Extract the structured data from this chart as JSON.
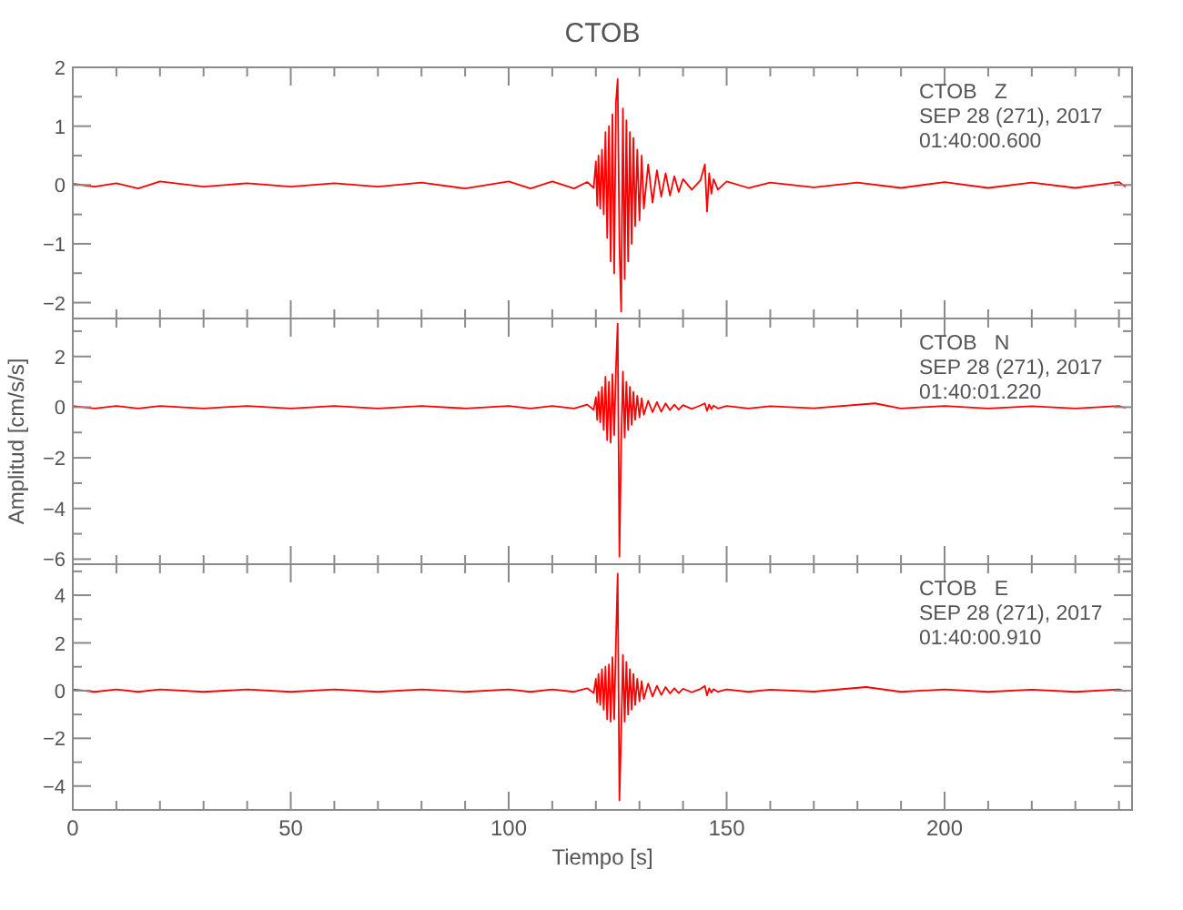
{
  "chart_data": [
    {
      "type": "line",
      "title": "CTOB",
      "tick_labels": "y",
      "grid": false,
      "annotations": [
        "CTOB   Z",
        "SEP 28 (271), 2017",
        "01:40:00.600"
      ],
      "xlim": [
        0,
        243
      ],
      "xticks": [
        0,
        {
          "value": 10,
          "label": null
        },
        {
          "value": 20,
          "label": null
        },
        {
          "value": 30,
          "label": null
        },
        {
          "value": 40,
          "label": null
        },
        50,
        {
          "value": 60,
          "label": null
        },
        {
          "value": 70,
          "label": null
        },
        {
          "value": 80,
          "label": null
        },
        {
          "value": 90,
          "label": null
        },
        100,
        {
          "value": 110,
          "label": null
        },
        {
          "value": 120,
          "label": null
        },
        {
          "value": 130,
          "label": null
        },
        {
          "value": 140,
          "label": null
        },
        150,
        {
          "value": 160,
          "label": null
        },
        {
          "value": 170,
          "label": null
        },
        {
          "value": 180,
          "label": null
        },
        {
          "value": 190,
          "label": null
        },
        200,
        {
          "value": 210,
          "label": null
        },
        {
          "value": 220,
          "label": null
        },
        {
          "value": 230,
          "label": null
        },
        {
          "value": 240,
          "label": null
        }
      ],
      "ylim": [
        -2.27,
        2
      ],
      "yticks": [
        -2,
        {
          "value": -1.5,
          "label": null
        },
        -1,
        {
          "value": -0.5,
          "label": null
        },
        0,
        {
          "value": 0.5,
          "label": null
        },
        1,
        {
          "value": 1.5,
          "label": null
        },
        2
      ],
      "x": [
        0,
        5,
        10,
        15,
        20,
        30,
        40,
        50,
        60,
        70,
        80,
        90,
        100,
        105,
        110,
        115,
        118,
        119.5,
        120,
        120.3,
        120.6,
        121,
        121.4,
        121.8,
        122.2,
        122.6,
        123,
        123.4,
        123.8,
        124.2,
        124.6,
        125,
        125.4,
        125.8,
        126.2,
        126.6,
        127,
        127.4,
        127.8,
        128.2,
        128.6,
        129,
        129.5,
        130,
        130.5,
        131,
        132,
        133,
        134,
        135,
        136,
        137,
        138,
        139,
        140,
        142,
        144,
        145,
        145.5,
        146,
        146.5,
        147,
        148,
        150,
        155,
        160,
        170,
        180,
        190,
        200,
        210,
        220,
        230,
        240,
        241.5
      ],
      "series": [
        {
          "color": "#ff0000",
          "values": [
            0.02,
            -0.03,
            0.03,
            -0.06,
            0.06,
            -0.03,
            0.03,
            -0.03,
            0.03,
            -0.03,
            0.04,
            -0.06,
            0.06,
            -0.06,
            0.06,
            -0.06,
            0.05,
            -0.05,
            0.4,
            -0.35,
            0.5,
            -0.4,
            0.6,
            -0.5,
            0.9,
            -0.9,
            1.0,
            -1.3,
            1.2,
            -1.5,
            1.4,
            1.8,
            -1.0,
            -2.15,
            1.3,
            -1.6,
            1.1,
            -1.3,
            0.9,
            -1.0,
            0.8,
            -0.7,
            0.6,
            -0.6,
            0.5,
            -0.4,
            0.35,
            -0.3,
            0.25,
            -0.2,
            0.2,
            -0.18,
            0.15,
            -0.12,
            0.1,
            -0.08,
            0.08,
            0.35,
            -0.45,
            0.2,
            -0.15,
            0.1,
            -0.08,
            0.06,
            -0.05,
            0.04,
            -0.04,
            0.04,
            -0.05,
            0.05,
            -0.05,
            0.04,
            -0.05,
            0.05,
            -0.03
          ]
        }
      ]
    },
    {
      "type": "line",
      "ylabel": "Amplitud [cm/s/s]",
      "tick_labels": "y",
      "grid": false,
      "annotations": [
        "CTOB   N",
        "SEP 28 (271), 2017",
        "01:40:01.220"
      ],
      "xlim": [
        0,
        243
      ],
      "xticks": [
        0,
        {
          "value": 10,
          "label": null
        },
        {
          "value": 20,
          "label": null
        },
        {
          "value": 30,
          "label": null
        },
        {
          "value": 40,
          "label": null
        },
        50,
        {
          "value": 60,
          "label": null
        },
        {
          "value": 70,
          "label": null
        },
        {
          "value": 80,
          "label": null
        },
        {
          "value": 90,
          "label": null
        },
        100,
        {
          "value": 110,
          "label": null
        },
        {
          "value": 120,
          "label": null
        },
        {
          "value": 130,
          "label": null
        },
        {
          "value": 140,
          "label": null
        },
        150,
        {
          "value": 160,
          "label": null
        },
        {
          "value": 170,
          "label": null
        },
        {
          "value": 180,
          "label": null
        },
        {
          "value": 190,
          "label": null
        },
        200,
        {
          "value": 210,
          "label": null
        },
        {
          "value": 220,
          "label": null
        },
        {
          "value": 230,
          "label": null
        },
        {
          "value": 240,
          "label": null
        }
      ],
      "ylim": [
        -6.2,
        3.5
      ],
      "yticks": [
        -6,
        {
          "value": -5,
          "label": null
        },
        -4,
        {
          "value": -3,
          "label": null
        },
        -2,
        {
          "value": -1,
          "label": null
        },
        0,
        {
          "value": 1,
          "label": null
        },
        2,
        {
          "value": 3,
          "label": null
        }
      ],
      "x": [
        0,
        5,
        10,
        15,
        20,
        30,
        40,
        50,
        60,
        70,
        80,
        90,
        100,
        105,
        110,
        115,
        118,
        119.5,
        120,
        120.3,
        120.6,
        121,
        121.4,
        121.8,
        122.2,
        122.6,
        123,
        123.4,
        123.8,
        124.2,
        124.6,
        125,
        125.4,
        125.8,
        126.2,
        126.6,
        127,
        127.4,
        127.8,
        128.2,
        128.6,
        129,
        129.5,
        130,
        130.5,
        131,
        132,
        133,
        134,
        135,
        136,
        137,
        138,
        139,
        140,
        142,
        144,
        145,
        145.5,
        146,
        146.5,
        147,
        148,
        150,
        155,
        160,
        170,
        184,
        190,
        200,
        210,
        220,
        230,
        240,
        241.5
      ],
      "series": [
        {
          "color": "#ff0000",
          "values": [
            0.05,
            -0.05,
            0.05,
            -0.05,
            0.05,
            -0.05,
            0.05,
            -0.05,
            0.05,
            -0.05,
            0.05,
            -0.05,
            0.05,
            -0.05,
            0.05,
            -0.05,
            0.1,
            -0.1,
            0.4,
            -0.5,
            0.6,
            -0.6,
            0.8,
            -0.9,
            1.2,
            -1.3,
            1.0,
            -1.4,
            1.3,
            -1.1,
            1.5,
            3.3,
            -5.9,
            -1.5,
            1.4,
            -1.2,
            1.0,
            -0.9,
            0.8,
            -0.7,
            0.6,
            -0.5,
            0.45,
            -0.4,
            0.35,
            -0.3,
            0.25,
            -0.2,
            0.2,
            -0.18,
            0.15,
            -0.12,
            0.1,
            -0.1,
            0.08,
            -0.07,
            0.07,
            0.15,
            -0.15,
            0.1,
            -0.08,
            0.06,
            -0.05,
            0.05,
            -0.05,
            0.04,
            -0.04,
            0.15,
            -0.05,
            0.05,
            -0.05,
            0.04,
            -0.05,
            0.05,
            -0.03
          ]
        }
      ]
    },
    {
      "type": "line",
      "xlabel": "Tiempo [s]",
      "grid": false,
      "annotations": [
        "CTOB   E",
        "SEP 28 (271), 2017",
        "01:40:00.910"
      ],
      "xlim": [
        0,
        243
      ],
      "xticks": [
        0,
        {
          "value": 10,
          "label": null
        },
        {
          "value": 20,
          "label": null
        },
        {
          "value": 30,
          "label": null
        },
        {
          "value": 40,
          "label": null
        },
        50,
        {
          "value": 60,
          "label": null
        },
        {
          "value": 70,
          "label": null
        },
        {
          "value": 80,
          "label": null
        },
        {
          "value": 90,
          "label": null
        },
        100,
        {
          "value": 110,
          "label": null
        },
        {
          "value": 120,
          "label": null
        },
        {
          "value": 130,
          "label": null
        },
        {
          "value": 140,
          "label": null
        },
        150,
        {
          "value": 160,
          "label": null
        },
        {
          "value": 170,
          "label": null
        },
        {
          "value": 180,
          "label": null
        },
        {
          "value": 190,
          "label": null
        },
        200,
        {
          "value": 210,
          "label": null
        },
        {
          "value": 220,
          "label": null
        },
        {
          "value": 230,
          "label": null
        },
        {
          "value": 240,
          "label": null
        }
      ],
      "ylim": [
        -5,
        5.3
      ],
      "yticks": [
        -4,
        {
          "value": -3,
          "label": null
        },
        -2,
        {
          "value": -1,
          "label": null
        },
        0,
        {
          "value": 1,
          "label": null
        },
        2,
        {
          "value": 3,
          "label": null
        },
        4,
        {
          "value": 5,
          "label": null
        }
      ],
      "x": [
        0,
        5,
        10,
        15,
        20,
        30,
        40,
        50,
        60,
        70,
        80,
        90,
        100,
        105,
        110,
        115,
        118,
        119.5,
        120,
        120.3,
        120.6,
        121,
        121.4,
        121.8,
        122.2,
        122.6,
        123,
        123.4,
        123.8,
        124.2,
        124.6,
        125,
        125.4,
        125.8,
        126.2,
        126.6,
        127,
        127.4,
        127.8,
        128.2,
        128.6,
        129,
        129.5,
        130,
        130.5,
        131,
        132,
        133,
        134,
        135,
        136,
        137,
        138,
        139,
        140,
        142,
        144,
        145,
        145.5,
        146,
        146.5,
        147,
        148,
        150,
        155,
        160,
        170,
        182,
        190,
        200,
        210,
        220,
        230,
        240,
        241.5
      ],
      "series": [
        {
          "color": "#ff0000",
          "values": [
            0.05,
            -0.05,
            0.05,
            -0.05,
            0.05,
            -0.05,
            0.05,
            -0.05,
            0.05,
            -0.05,
            0.05,
            -0.05,
            0.05,
            -0.05,
            0.05,
            -0.05,
            0.1,
            -0.1,
            0.5,
            -0.5,
            0.7,
            -0.6,
            0.9,
            -0.8,
            1.0,
            -1.2,
            1.1,
            -1.3,
            1.4,
            -1.2,
            2.0,
            4.9,
            -4.6,
            -1.8,
            1.5,
            -1.3,
            1.2,
            -1.0,
            0.9,
            -0.8,
            0.7,
            -0.6,
            0.5,
            -0.45,
            0.4,
            -0.35,
            0.3,
            -0.25,
            0.2,
            -0.18,
            0.15,
            -0.12,
            0.1,
            -0.1,
            0.08,
            -0.07,
            0.07,
            0.2,
            -0.2,
            0.1,
            -0.08,
            0.06,
            -0.05,
            0.05,
            -0.05,
            0.04,
            -0.04,
            0.15,
            -0.05,
            0.05,
            -0.05,
            0.04,
            -0.05,
            0.05,
            -0.03
          ]
        }
      ]
    }
  ]
}
